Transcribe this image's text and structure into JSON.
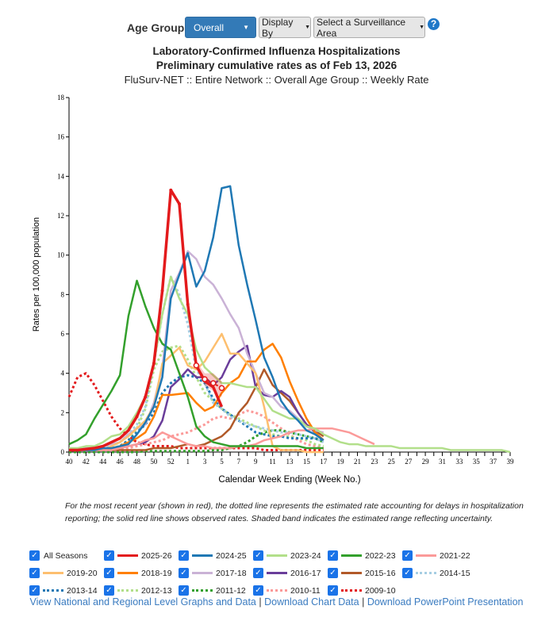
{
  "controls": {
    "age_group_label": "Age Group:",
    "age_group_value": "Overall",
    "display_by": "Display By",
    "surveillance_area": "Select a Surveillance Area",
    "help_icon": "?"
  },
  "titles": {
    "line1": "Laboratory-Confirmed Influenza Hospitalizations",
    "line2": "Preliminary cumulative rates as of Feb 13, 2026",
    "line3": "FluSurv-NET :: Entire Network :: Overall Age Group :: Weekly Rate"
  },
  "footnote": "For the most recent year (shown in red), the dotted line represents the estimated rate accounting for delays in hospitalization reporting; the solid red line shows observed rates. Shaded band indicates the estimated range reflecting uncertainty.",
  "legend_all": "All Seasons",
  "links": [
    "View National and Regional Level Graphs and Data",
    "Download Chart Data",
    "Download PowerPoint Presentation"
  ],
  "chart_data": {
    "type": "line",
    "xlabel": "Calendar Week Ending (Week No.)",
    "ylabel": "Rates per 100,000 population",
    "ylim": [
      0,
      18
    ],
    "yticks": [
      0,
      2,
      4,
      6,
      8,
      10,
      12,
      14,
      16,
      18
    ],
    "weeks": [
      40,
      41,
      42,
      43,
      44,
      45,
      46,
      47,
      48,
      49,
      50,
      51,
      52,
      53,
      1,
      2,
      3,
      4,
      5,
      6,
      7,
      8,
      9,
      10,
      11,
      12,
      13,
      14,
      15,
      16,
      17,
      18,
      19,
      20,
      21,
      22,
      23,
      24,
      25,
      26,
      27,
      28,
      29,
      30,
      31,
      32,
      33,
      34,
      35,
      36,
      37,
      38,
      39
    ],
    "grid": false,
    "legend": "bottom",
    "series": [
      {
        "name": "2025-26",
        "color": "#e31a1c",
        "style": "solid",
        "values": [
          0.1,
          0.1,
          0.15,
          0.2,
          0.3,
          0.5,
          0.7,
          1.1,
          1.8,
          2.8,
          4.5,
          8.2,
          13.3,
          12.6,
          7.5,
          4.4,
          3.6,
          3.3,
          2.3
        ],
        "estimate_start": 15,
        "estimate": [
          4.4,
          3.7,
          3.5,
          3.25
        ],
        "band_low": [
          4.2,
          3.4,
          3.1,
          2.8
        ],
        "band_high": [
          4.6,
          4.0,
          4.0,
          3.6
        ]
      },
      {
        "name": "2024-25",
        "color": "#1f78b4",
        "style": "solid",
        "values": [
          0.1,
          0.1,
          0.1,
          0.1,
          0.2,
          0.2,
          0.3,
          0.4,
          0.9,
          1.5,
          2.3,
          3.8,
          7.8,
          9.0,
          10.1,
          8.4,
          9.2,
          10.9,
          13.4,
          13.5,
          10.5,
          8.5,
          6.7,
          4.8,
          3.8,
          2.6,
          2.0,
          1.6,
          1.1,
          0.9,
          0.6
        ]
      },
      {
        "name": "2023-24",
        "color": "#b2df8a",
        "style": "solid",
        "values": [
          0.2,
          0.2,
          0.3,
          0.3,
          0.5,
          0.8,
          0.9,
          1.3,
          2.0,
          2.8,
          4.5,
          7.0,
          8.9,
          7.8,
          7.0,
          5.2,
          4.3,
          3.9,
          3.5,
          3.5,
          3.4,
          3.3,
          3.3,
          2.7,
          2.1,
          1.9,
          1.7,
          1.7,
          1.3,
          1.2,
          0.9,
          0.7,
          0.5,
          0.4,
          0.4,
          0.3,
          0.3,
          0.3,
          0.3,
          0.2,
          0.2,
          0.2,
          0.2,
          0.2,
          0.2,
          0.1,
          0.1,
          0.1,
          0.1,
          0.1,
          0.1,
          0.1,
          0.0
        ]
      },
      {
        "name": "2022-23",
        "color": "#33a02c",
        "style": "solid",
        "values": [
          0.4,
          0.6,
          0.9,
          1.7,
          2.4,
          3.1,
          3.9,
          6.9,
          8.7,
          7.4,
          6.3,
          5.5,
          5.2,
          4.0,
          2.8,
          1.3,
          0.8,
          0.5,
          0.4,
          0.3,
          0.3,
          0.3,
          0.3,
          0.3,
          0.3,
          0.3,
          0.3,
          0.3,
          0.2,
          0.2,
          0.2
        ]
      },
      {
        "name": "2021-22",
        "color": "#fb9a99",
        "style": "solid",
        "values": [
          0.1,
          0.1,
          0.1,
          0.1,
          0.1,
          0.1,
          0.2,
          0.3,
          0.4,
          0.6,
          0.7,
          1.0,
          0.8,
          0.6,
          0.4,
          0.3,
          0.3,
          0.2,
          0.2,
          0.2,
          0.3,
          0.3,
          0.4,
          0.6,
          0.7,
          0.8,
          1.0,
          1.1,
          1.1,
          1.2,
          1.2,
          1.2,
          1.1,
          1.0,
          0.8,
          0.6,
          0.4
        ]
      },
      {
        "name": "2019-20",
        "color": "#fdbf6f",
        "style": "solid",
        "values": [
          0.1,
          0.1,
          0.1,
          0.1,
          0.1,
          0.3,
          0.5,
          0.8,
          1.2,
          1.6,
          2.3,
          4.5,
          4.9,
          5.3,
          4.4,
          4.2,
          4.6,
          5.3,
          6.0,
          5.0,
          5.0,
          4.5,
          4.0,
          2.3,
          0.3,
          0.1,
          0.1,
          0.1,
          0.0,
          0.0,
          0.0
        ]
      },
      {
        "name": "2018-19",
        "color": "#ff7f00",
        "style": "solid",
        "values": [
          0.1,
          0.1,
          0.1,
          0.1,
          0.1,
          0.2,
          0.3,
          0.5,
          0.7,
          1.0,
          1.8,
          2.9,
          2.9,
          2.95,
          3.0,
          2.5,
          2.1,
          2.3,
          3.0,
          3.5,
          3.8,
          4.6,
          4.6,
          5.2,
          5.5,
          4.8,
          3.6,
          2.6,
          1.7,
          1.0,
          0.6
        ]
      },
      {
        "name": "2017-18",
        "color": "#cab2d6",
        "style": "solid",
        "values": [
          0.1,
          0.1,
          0.2,
          0.2,
          0.3,
          0.4,
          0.5,
          0.9,
          1.2,
          1.4,
          2.5,
          4.3,
          8.2,
          9.1,
          10.2,
          9.8,
          8.9,
          8.5,
          7.8,
          7.0,
          6.3,
          5.0,
          4.0,
          3.0,
          2.8,
          2.3,
          2.1,
          1.7,
          1.3,
          1.1,
          1.0
        ]
      },
      {
        "name": "2016-17",
        "color": "#6a3d9a",
        "style": "solid",
        "values": [
          0.1,
          0.1,
          0.1,
          0.1,
          0.1,
          0.2,
          0.2,
          0.3,
          0.4,
          0.5,
          0.8,
          1.6,
          3.3,
          3.7,
          4.2,
          3.8,
          3.8,
          3.4,
          3.8,
          4.7,
          5.1,
          5.4,
          3.3,
          2.9,
          2.8,
          3.1,
          2.8,
          2.0,
          1.4,
          1.0,
          0.6
        ]
      },
      {
        "name": "2015-16",
        "color": "#b15928",
        "style": "solid",
        "values": [
          0.1,
          0.1,
          0.1,
          0.1,
          0.1,
          0.1,
          0.1,
          0.1,
          0.1,
          0.1,
          0.2,
          0.2,
          0.2,
          0.3,
          0.4,
          0.3,
          0.4,
          0.6,
          0.8,
          1.2,
          2.0,
          2.5,
          3.3,
          4.2,
          3.4,
          3.0,
          2.6,
          2.0,
          1.4,
          1.1,
          0.8
        ]
      },
      {
        "name": "2014-15",
        "color": "#a6cee3",
        "style": "dotted",
        "values": [
          0.1,
          0.1,
          0.1,
          0.2,
          0.2,
          0.3,
          0.5,
          0.9,
          1.4,
          2.3,
          4.5,
          7.0,
          8.9,
          8.0,
          6.5,
          4.2,
          3.5,
          2.5,
          2.2,
          1.8,
          1.6,
          1.4,
          1.3,
          1.2,
          1.1,
          1.0,
          1.0,
          0.9,
          0.8,
          0.7,
          0.5
        ]
      },
      {
        "name": "2013-14",
        "color": "#1f78b4",
        "style": "dotted",
        "values": [
          0.1,
          0.1,
          0.1,
          0.1,
          0.1,
          0.1,
          0.3,
          0.6,
          1.0,
          1.4,
          2.0,
          3.0,
          3.5,
          3.8,
          3.9,
          3.8,
          3.5,
          2.7,
          2.2,
          1.9,
          1.6,
          1.3,
          1.0,
          0.9,
          0.8,
          0.8,
          0.7,
          0.7,
          0.7,
          0.7,
          0.6
        ]
      },
      {
        "name": "2012-13",
        "color": "#b2df8a",
        "style": "dotted",
        "values": [
          0.1,
          0.1,
          0.1,
          0.1,
          0.1,
          0.2,
          0.3,
          0.6,
          1.2,
          2.2,
          4.2,
          5.1,
          5.3,
          5.4,
          4.7,
          3.8,
          3.0,
          2.6,
          2.2,
          1.9,
          1.7,
          1.5,
          1.3,
          1.1,
          0.9,
          0.8,
          0.8,
          0.7,
          0.6,
          0.4,
          0.3
        ]
      },
      {
        "name": "2011-12",
        "color": "#33a02c",
        "style": "dotted",
        "values": [
          0.0,
          0.0,
          0.0,
          0.0,
          0.0,
          0.0,
          0.0,
          0.0,
          0.0,
          0.05,
          0.05,
          0.05,
          0.05,
          0.05,
          0.05,
          0.05,
          0.05,
          0.1,
          0.1,
          0.2,
          0.3,
          0.5,
          0.8,
          1.0,
          1.1,
          1.1,
          1.0,
          0.9,
          0.8,
          0.7,
          0.5
        ]
      },
      {
        "name": "2010-11",
        "color": "#fb9a99",
        "style": "dotted",
        "values": [
          0.1,
          0.1,
          0.1,
          0.1,
          0.1,
          0.1,
          0.1,
          0.2,
          0.3,
          0.4,
          0.5,
          0.6,
          0.8,
          0.9,
          1.0,
          1.2,
          1.4,
          1.7,
          1.8,
          1.7,
          1.9,
          2.1,
          2.0,
          1.8,
          1.5,
          1.2,
          0.9,
          0.6,
          0.4,
          0.3,
          0.2
        ]
      },
      {
        "name": "2009-10",
        "color": "#e31a1c",
        "style": "dotted",
        "values": [
          2.8,
          3.8,
          4.0,
          3.4,
          2.6,
          1.8,
          1.2,
          0.8,
          0.5,
          0.4,
          0.3,
          0.3,
          0.3,
          0.2,
          0.2,
          0.2,
          0.2,
          0.2,
          0.2,
          0.2,
          0.2,
          0.2,
          0.2,
          0.1,
          0.1,
          0.1,
          0.1,
          0.1,
          0.1,
          0.1,
          0.1
        ]
      }
    ]
  }
}
